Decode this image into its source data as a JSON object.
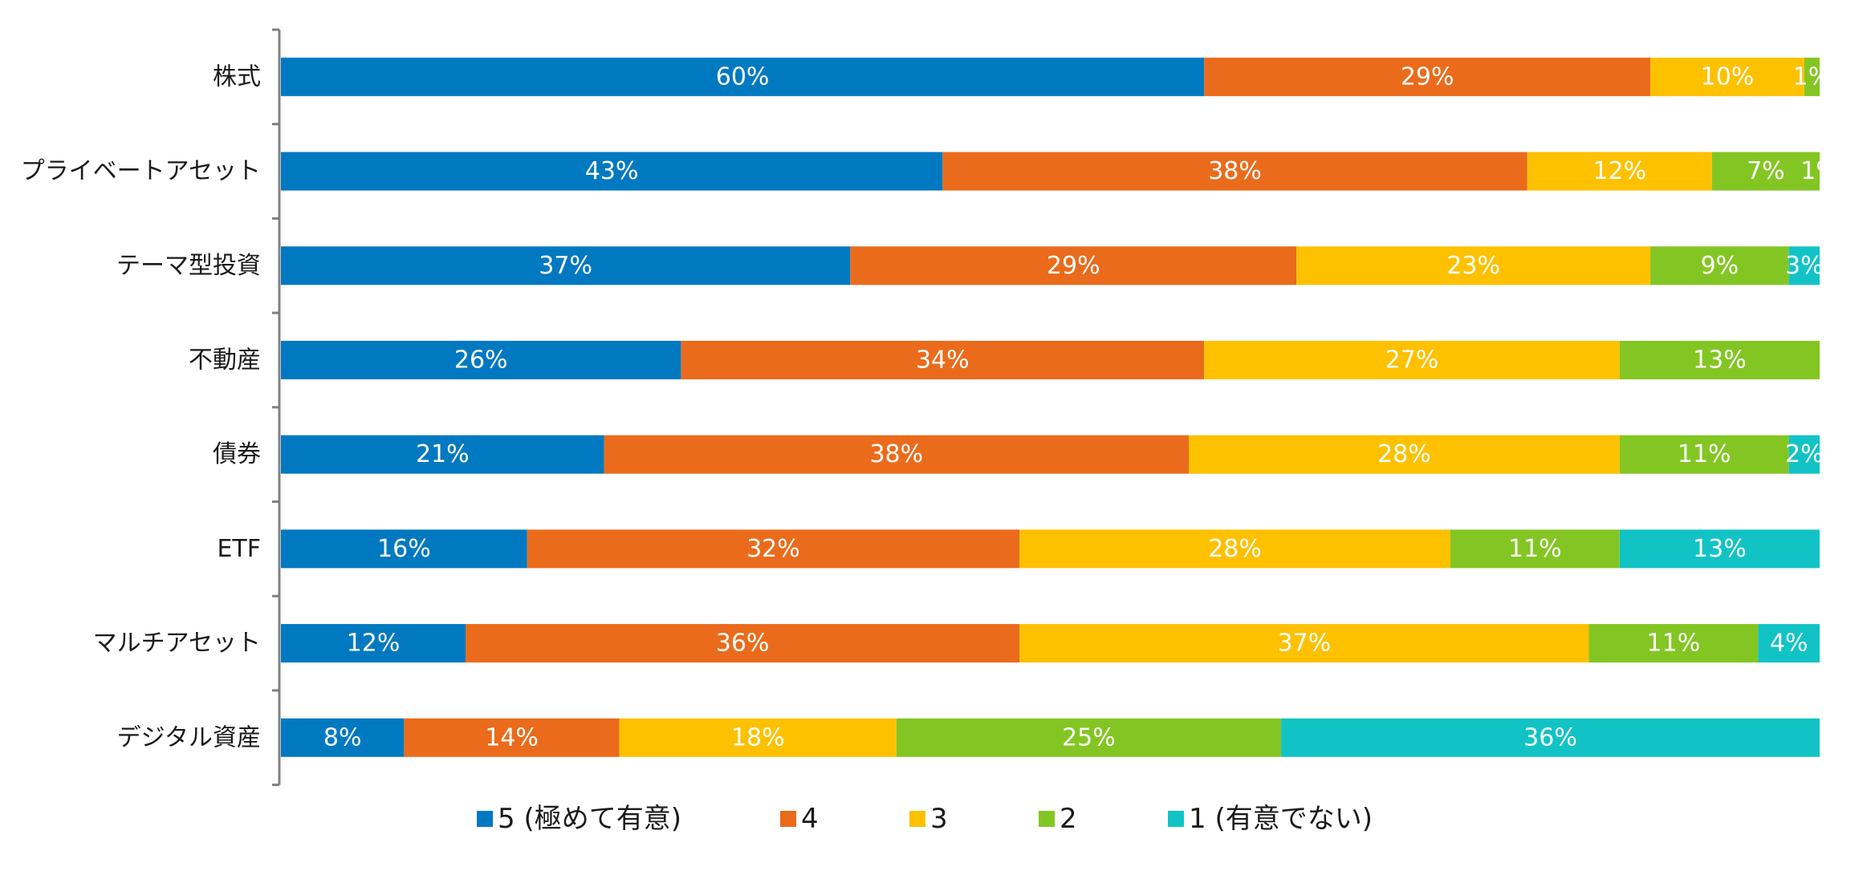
{
  "chart_data": {
    "type": "bar",
    "orientation": "horizontal",
    "stacked": true,
    "title": "",
    "xlabel": "",
    "ylabel": "",
    "xlim": [
      0,
      100
    ],
    "grid": false,
    "legend_position": "bottom",
    "categories": [
      "株式",
      "プライベートアセット",
      "テーマ型投資",
      "不動産",
      "債券",
      "ETF",
      "マルチアセット",
      "デジタル資産"
    ],
    "series": [
      {
        "name": "5 (極めて有意)",
        "color": "#0079C1",
        "values": [
          60,
          43,
          37,
          26,
          21,
          16,
          12,
          8
        ]
      },
      {
        "name": "4",
        "color": "#EA6B1B",
        "values": [
          29,
          38,
          29,
          34,
          38,
          32,
          36,
          14
        ]
      },
      {
        "name": "3",
        "color": "#FDC100",
        "values": [
          10,
          12,
          23,
          27,
          28,
          28,
          37,
          18
        ]
      },
      {
        "name": "2",
        "color": "#83C623",
        "values": [
          1,
          7,
          9,
          13,
          11,
          11,
          11,
          25
        ]
      },
      {
        "name": "1 (有意でない)",
        "color": "#12C3C6",
        "values": [
          0,
          1,
          3,
          0,
          2,
          13,
          4,
          36
        ]
      }
    ],
    "value_suffix": "%"
  }
}
